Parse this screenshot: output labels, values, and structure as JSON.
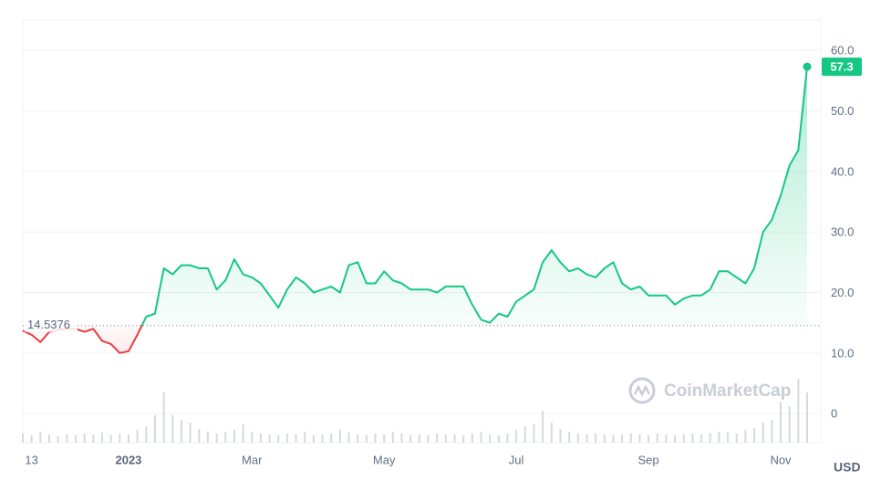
{
  "chart_data": {
    "type": "line",
    "y_unit": "USD",
    "watermark": "CoinMarketCap",
    "baseline": 14.5376,
    "baseline_label": "14.5376",
    "color_up": "#16c784",
    "color_down": "#ea3943",
    "grid": true,
    "ylim": [
      -4.8,
      65
    ],
    "yticks": [
      0,
      {
        "value": 10,
        "label": "10.0"
      },
      {
        "value": 20,
        "label": "20.0"
      },
      {
        "value": 30,
        "label": "30.0"
      },
      {
        "value": 40,
        "label": "40.0"
      },
      {
        "value": 50,
        "label": "50.0"
      },
      {
        "value": 60,
        "label": "60.0"
      }
    ],
    "categories": [
      null,
      "13",
      null,
      null,
      null,
      null,
      null,
      null,
      null,
      null,
      null,
      null,
      "2023",
      null,
      null,
      null,
      null,
      null,
      null,
      null,
      null,
      null,
      null,
      null,
      null,
      null,
      "Mar",
      null,
      null,
      null,
      null,
      null,
      null,
      null,
      null,
      null,
      null,
      null,
      null,
      null,
      null,
      "May",
      null,
      null,
      null,
      null,
      null,
      null,
      null,
      null,
      null,
      null,
      null,
      null,
      null,
      null,
      "Jul",
      null,
      null,
      null,
      null,
      null,
      null,
      null,
      null,
      null,
      null,
      null,
      null,
      null,
      null,
      "Sep",
      null,
      null,
      null,
      null,
      null,
      null,
      null,
      null,
      null,
      null,
      null,
      null,
      null,
      null,
      "Nov",
      null,
      null,
      null
    ],
    "series": [
      {
        "name": "Price",
        "values": [
          13.7,
          13,
          11.8,
          13.5,
          13.8,
          14,
          14,
          13.5,
          14,
          12,
          11.5,
          10,
          10.3,
          13,
          16,
          16.5,
          24,
          23,
          24.5,
          24.5,
          24,
          24,
          20.5,
          22,
          25.5,
          23,
          22.5,
          21.5,
          19.5,
          17.5,
          20.5,
          22.5,
          21.5,
          20,
          20.5,
          21,
          20,
          24.5,
          25,
          21.5,
          21.5,
          23.5,
          22,
          21.5,
          20.5,
          20.5,
          20.5,
          20,
          21,
          21,
          21,
          18,
          15.5,
          15,
          16.5,
          16,
          18.5,
          19.5,
          20.5,
          25,
          27,
          25,
          23.5,
          24,
          23,
          22.5,
          24,
          25,
          21.5,
          20.5,
          21,
          19.5,
          19.5,
          19.5,
          18,
          19,
          19.5,
          19.5,
          20.5,
          23.5,
          23.5,
          22.5,
          21.5,
          24,
          30,
          32,
          36,
          41,
          43.5,
          57.3
        ]
      },
      {
        "name": "Volume",
        "values": [
          10,
          8,
          12,
          9,
          7,
          9,
          8,
          10,
          9,
          11,
          8,
          10,
          9,
          14,
          18,
          30,
          55,
          30,
          25,
          22,
          15,
          12,
          10,
          12,
          14,
          20,
          12,
          10,
          9,
          8,
          10,
          9,
          12,
          8,
          9,
          10,
          14,
          11,
          9,
          8,
          10,
          9,
          12,
          10,
          8,
          9,
          8,
          10,
          9,
          9,
          8,
          10,
          12,
          9,
          8,
          10,
          14,
          18,
          20,
          35,
          22,
          15,
          12,
          10,
          9,
          10,
          9,
          8,
          9,
          10,
          9,
          8,
          10,
          9,
          8,
          9,
          10,
          9,
          10,
          12,
          11,
          10,
          14,
          16,
          22,
          25,
          45,
          40,
          70,
          55
        ]
      }
    ]
  }
}
